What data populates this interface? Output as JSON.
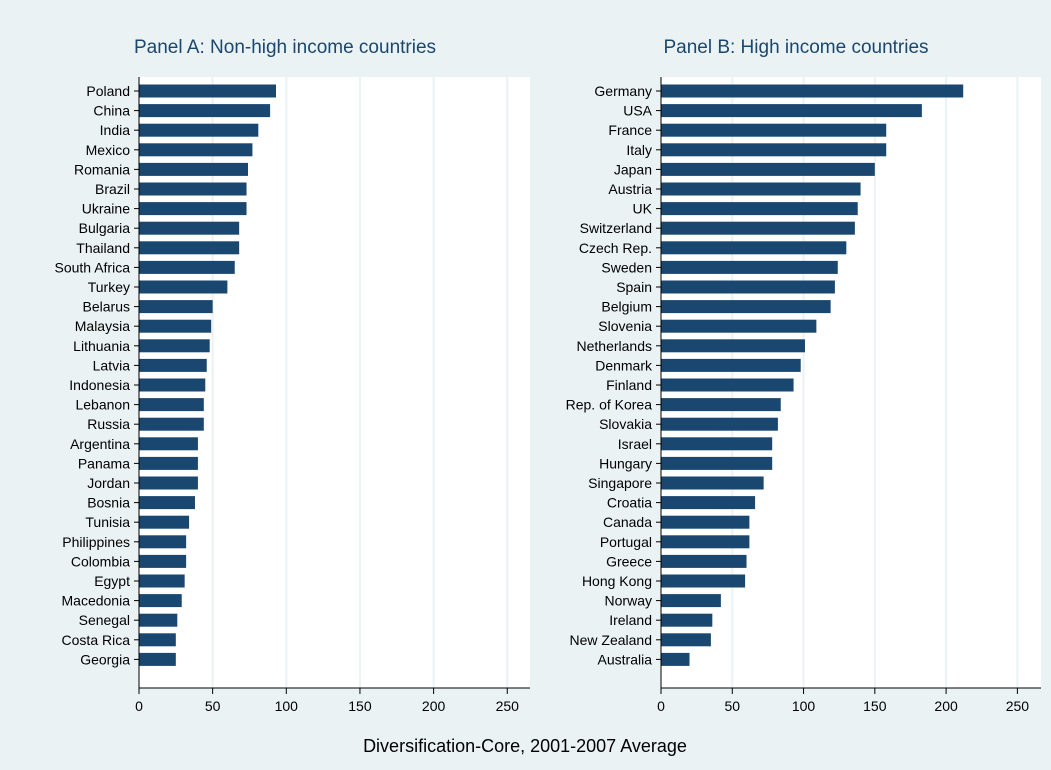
{
  "xlabel": "Diversification-Core, 2001-2007 Average",
  "chart_data": [
    {
      "type": "bar",
      "orientation": "horizontal",
      "title": "Panel A: Non-high income countries",
      "xlabel": "Diversification-Core, 2001-2007 Average",
      "xlim": [
        0,
        265
      ],
      "xticks": [
        0,
        50,
        100,
        150,
        200,
        250
      ],
      "grid": true,
      "categories": [
        "Poland",
        "China",
        "India",
        "Mexico",
        "Romania",
        "Brazil",
        "Ukraine",
        "Bulgaria",
        "Thailand",
        "South Africa",
        "Turkey",
        "Belarus",
        "Malaysia",
        "Lithuania",
        "Latvia",
        "Indonesia",
        "Lebanon",
        "Russia",
        "Argentina",
        "Panama",
        "Jordan",
        "Bosnia",
        "Tunisia",
        "Philippines",
        "Colombia",
        "Egypt",
        "Macedonia",
        "Senegal",
        "Costa Rica",
        "Georgia"
      ],
      "values": [
        93,
        89,
        81,
        77,
        74,
        73,
        73,
        68,
        68,
        65,
        60,
        50,
        49,
        48,
        46,
        45,
        44,
        44,
        40,
        40,
        40,
        38,
        34,
        32,
        32,
        31,
        29,
        26,
        25,
        25
      ],
      "color": "#1a476f"
    },
    {
      "type": "bar",
      "orientation": "horizontal",
      "title": "Panel B: High income countries",
      "xlabel": "Diversification-Core, 2001-2007 Average",
      "xlim": [
        0,
        265
      ],
      "xticks": [
        0,
        50,
        100,
        150,
        200,
        250
      ],
      "grid": true,
      "categories": [
        "Germany",
        "USA",
        "France",
        "Italy",
        "Japan",
        "Austria",
        "UK",
        "Switzerland",
        "Czech Rep.",
        "Sweden",
        "Spain",
        "Belgium",
        "Slovenia",
        "Netherlands",
        "Denmark",
        "Finland",
        "Rep. of Korea",
        "Slovakia",
        "Israel",
        "Hungary",
        "Singapore",
        "Croatia",
        "Canada",
        "Portugal",
        "Greece",
        "Hong Kong",
        "Norway",
        "Ireland",
        "New Zealand",
        "Australia"
      ],
      "values": [
        212,
        183,
        158,
        158,
        150,
        140,
        138,
        136,
        130,
        124,
        122,
        119,
        109,
        101,
        98,
        93,
        84,
        82,
        78,
        78,
        72,
        66,
        62,
        62,
        60,
        59,
        42,
        36,
        35,
        20
      ],
      "color": "#1a476f"
    }
  ]
}
